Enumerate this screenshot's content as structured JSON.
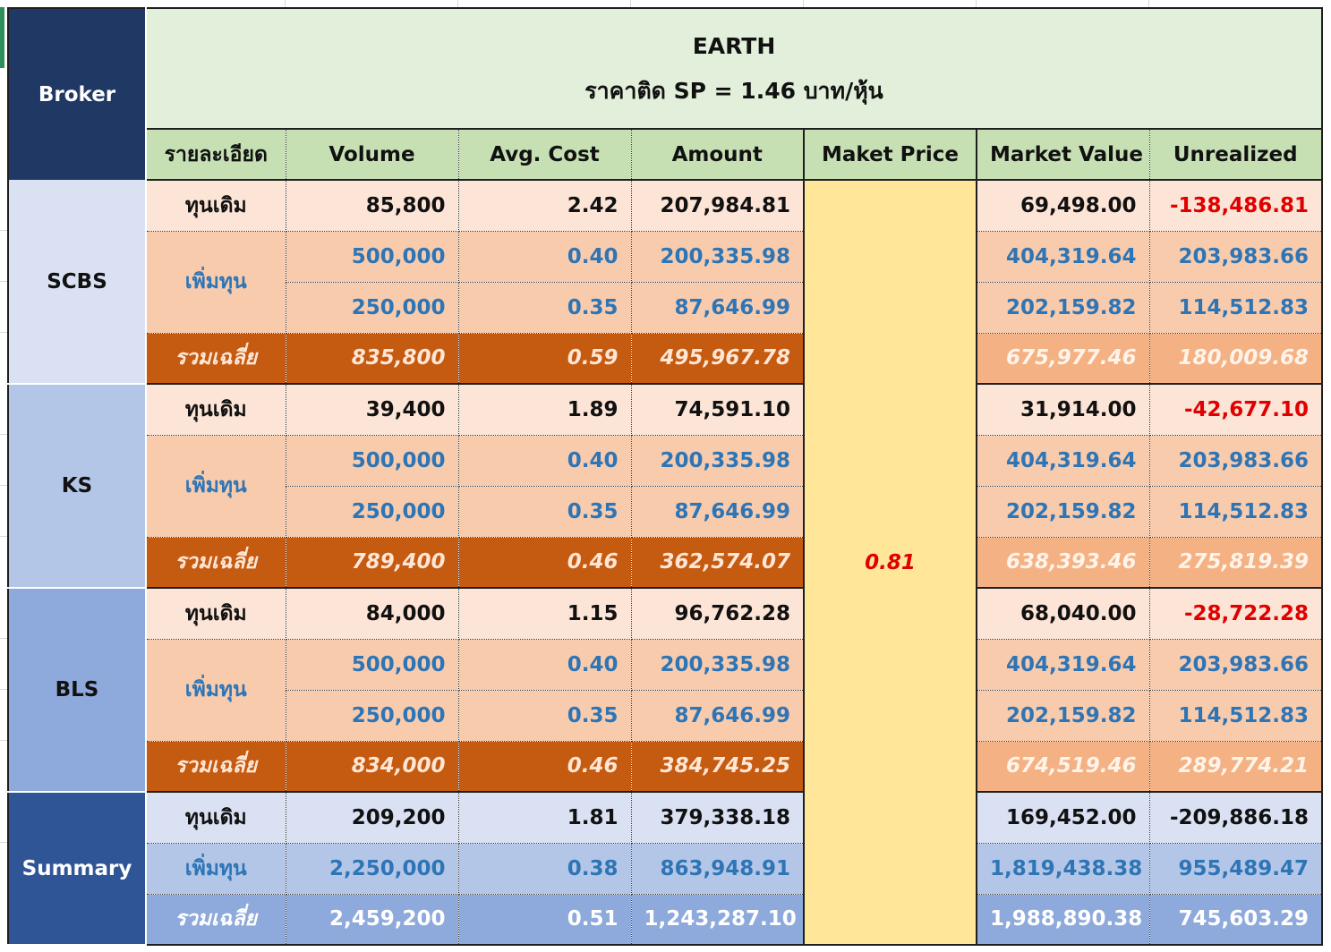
{
  "title": "EARTH",
  "subtitle": "ราคาติด SP = 1.46 บาท/หุ้น",
  "headers": {
    "broker": "Broker",
    "detail": "รายละเอียด",
    "volume": "Volume",
    "avg_cost": "Avg. Cost",
    "amount": "Amount",
    "market_price": "Maket Price",
    "market_value": "Market Value",
    "unrealized": "Unrealized"
  },
  "market_price": "0.81",
  "brokers": [
    {
      "name": "SCBS",
      "base": {
        "label": "ทุนเดิม",
        "volume": "85,800",
        "avg_cost": "2.42",
        "amount": "207,984.81",
        "market_value": "69,498.00",
        "unrealized": "-138,486.81"
      },
      "add_label": "เพิ่มทุน",
      "adds": [
        {
          "volume": "500,000",
          "avg_cost": "0.40",
          "amount": "200,335.98",
          "market_value": "404,319.64",
          "unrealized": "203,983.66"
        },
        {
          "volume": "250,000",
          "avg_cost": "0.35",
          "amount": "87,646.99",
          "market_value": "202,159.82",
          "unrealized": "114,512.83"
        }
      ],
      "avg": {
        "label": "รวมเฉลี่ย",
        "volume": "835,800",
        "avg_cost": "0.59",
        "amount": "495,967.78",
        "market_value": "675,977.46",
        "unrealized": "180,009.68"
      }
    },
    {
      "name": "KS",
      "base": {
        "label": "ทุนเดิม",
        "volume": "39,400",
        "avg_cost": "1.89",
        "amount": "74,591.10",
        "market_value": "31,914.00",
        "unrealized": "-42,677.10"
      },
      "add_label": "เพิ่มทุน",
      "adds": [
        {
          "volume": "500,000",
          "avg_cost": "0.40",
          "amount": "200,335.98",
          "market_value": "404,319.64",
          "unrealized": "203,983.66"
        },
        {
          "volume": "250,000",
          "avg_cost": "0.35",
          "amount": "87,646.99",
          "market_value": "202,159.82",
          "unrealized": "114,512.83"
        }
      ],
      "avg": {
        "label": "รวมเฉลี่ย",
        "volume": "789,400",
        "avg_cost": "0.46",
        "amount": "362,574.07",
        "market_value": "638,393.46",
        "unrealized": "275,819.39"
      }
    },
    {
      "name": "BLS",
      "base": {
        "label": "ทุนเดิม",
        "volume": "84,000",
        "avg_cost": "1.15",
        "amount": "96,762.28",
        "market_value": "68,040.00",
        "unrealized": "-28,722.28"
      },
      "add_label": "เพิ่มทุน",
      "adds": [
        {
          "volume": "500,000",
          "avg_cost": "0.40",
          "amount": "200,335.98",
          "market_value": "404,319.64",
          "unrealized": "203,983.66"
        },
        {
          "volume": "250,000",
          "avg_cost": "0.35",
          "amount": "87,646.99",
          "market_value": "202,159.82",
          "unrealized": "114,512.83"
        }
      ],
      "avg": {
        "label": "รวมเฉลี่ย",
        "volume": "834,000",
        "avg_cost": "0.46",
        "amount": "384,745.25",
        "market_value": "674,519.46",
        "unrealized": "289,774.21"
      }
    }
  ],
  "summary": {
    "name": "Summary",
    "base": {
      "label": "ทุนเดิม",
      "volume": "209,200",
      "avg_cost": "1.81",
      "amount": "379,338.18",
      "market_value": "169,452.00",
      "unrealized": "-209,886.18"
    },
    "add": {
      "label": "เพิ่มทุน",
      "volume": "2,250,000",
      "avg_cost": "0.38",
      "amount": "863,948.91",
      "market_value": "1,819,438.38",
      "unrealized": "955,489.47"
    },
    "avg": {
      "label": "รวมเฉลี่ย",
      "volume": "2,459,200",
      "avg_cost": "0.51",
      "amount": "1,243,287.10",
      "market_value": "1,988,890.38",
      "unrealized": "745,603.29"
    }
  },
  "colors": {
    "broker_header": "#203864",
    "title_bg": "#e2efda",
    "header_bg": "#c6e0b4",
    "base_row": "#fce4d6",
    "add_row": "#f8cbad",
    "avg_row": "#c55a11",
    "avg_right": "#f4b183",
    "market_price_bg": "#ffe699",
    "negative": "#e00000",
    "add_text": "#2e75b6",
    "summary_bg": "#2f5597"
  }
}
